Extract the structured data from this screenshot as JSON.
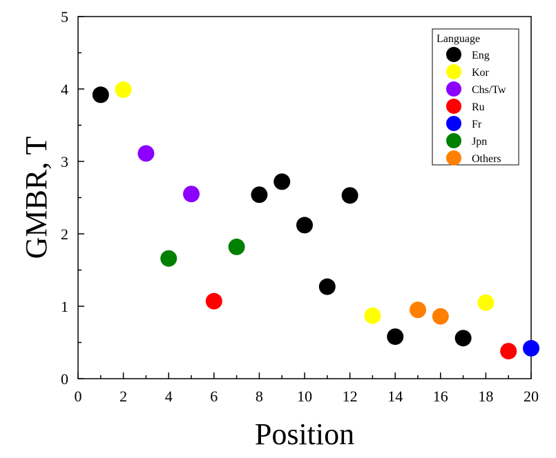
{
  "chart_data": {
    "type": "scatter",
    "xlabel": "Position",
    "ylabel": "GMBR, T",
    "xlim": [
      0,
      20
    ],
    "ylim": [
      0,
      5
    ],
    "x_ticks": [
      "0",
      "2",
      "4",
      "6",
      "8",
      "10",
      "12",
      "14",
      "16",
      "18",
      "20"
    ],
    "y_ticks": [
      "0",
      "1",
      "2",
      "3",
      "4",
      "5"
    ],
    "grid": false,
    "legend": {
      "title": "Language",
      "placement": "top-right"
    },
    "series": [
      {
        "name": "Eng",
        "color": "#000000",
        "points": [
          [
            1,
            3.92
          ],
          [
            8,
            2.54
          ],
          [
            9,
            2.72
          ],
          [
            10,
            2.12
          ],
          [
            11,
            1.27
          ],
          [
            12,
            2.53
          ],
          [
            14,
            0.58
          ],
          [
            17,
            0.56
          ]
        ]
      },
      {
        "name": "Kor",
        "color": "#ffff00",
        "points": [
          [
            2,
            3.99
          ],
          [
            13,
            0.87
          ],
          [
            18,
            1.05
          ]
        ]
      },
      {
        "name": "Chs/Tw",
        "color": "#8b00ff",
        "points": [
          [
            3,
            3.11
          ],
          [
            5,
            2.55
          ]
        ]
      },
      {
        "name": "Ru",
        "color": "#ff0000",
        "points": [
          [
            6,
            1.07
          ],
          [
            19,
            0.38
          ]
        ]
      },
      {
        "name": "Fr",
        "color": "#0000ff",
        "points": [
          [
            20,
            0.42
          ]
        ]
      },
      {
        "name": "Jpn",
        "color": "#008000",
        "points": [
          [
            4,
            1.66
          ],
          [
            7,
            1.82
          ]
        ]
      },
      {
        "name": "Others",
        "color": "#ff8000",
        "points": [
          [
            15,
            0.95
          ],
          [
            16,
            0.86
          ]
        ]
      }
    ]
  }
}
